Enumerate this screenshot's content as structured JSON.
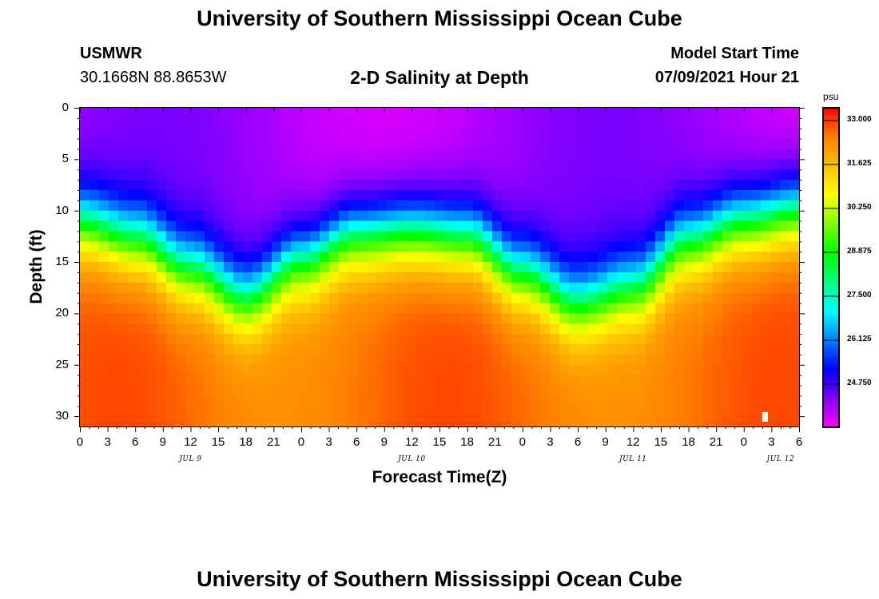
{
  "page": {
    "top_title": "University of Southern Mississippi Ocean Cube",
    "bottom_title": "University of Southern Mississippi Ocean Cube",
    "station_name": "USMWR",
    "station_coords": "30.1668N  88.8653W",
    "model_start_label": "Model Start Time",
    "model_start_value": "07/09/2021 Hour 21"
  },
  "chart_data": {
    "type": "heatmap",
    "title": "2-D Salinity at Depth",
    "xlabel": "Forecast Time(Z)",
    "ylabel": "Depth (ft)",
    "x_tick_labels": [
      "0",
      "3",
      "6",
      "9",
      "12",
      "15",
      "18",
      "21",
      "0",
      "3",
      "6",
      "9",
      "12",
      "15",
      "18",
      "21",
      "0",
      "3",
      "6",
      "9",
      "12",
      "15",
      "18",
      "21",
      "0",
      "3",
      "6"
    ],
    "x_range_hours": [
      0,
      78
    ],
    "date_labels": [
      {
        "text": "JUL 9",
        "hour": 12
      },
      {
        "text": "JUL 10",
        "hour": 36
      },
      {
        "text": "JUL 11",
        "hour": 60
      },
      {
        "text": "JUL 12",
        "hour": 76
      }
    ],
    "y_tick_labels": [
      "0",
      "5",
      "10",
      "15",
      "20",
      "25",
      "30"
    ],
    "y_range_ft": [
      0,
      31
    ],
    "colorbar": {
      "unit": "psu",
      "range": [
        23.4,
        33.4
      ],
      "tick_labels": [
        "33.000",
        "31.625",
        "30.250",
        "28.875",
        "27.500",
        "26.125",
        "24.750"
      ],
      "colors": [
        "#ff00ff",
        "#8000ff",
        "#0000ff",
        "#0080ff",
        "#00ffff",
        "#00ff80",
        "#00ff00",
        "#80ff00",
        "#ffff00",
        "#ffc000",
        "#ff8000",
        "#ff0000"
      ]
    },
    "halocline_depth_ft": {
      "description": "depth of 28.875 psu isoline vs forecast hour",
      "hours": [
        0,
        6,
        12,
        18,
        24,
        30,
        36,
        42,
        48,
        54,
        60,
        66,
        72,
        78
      ],
      "depths": [
        11.5,
        13.0,
        16.0,
        19.0,
        15.5,
        13.0,
        12.5,
        13.0,
        16.5,
        19.5,
        18.0,
        13.5,
        11.5,
        10.5
      ]
    }
  }
}
